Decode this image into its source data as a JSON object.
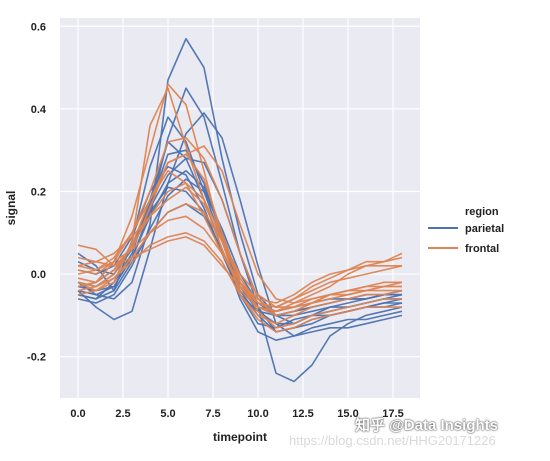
{
  "chart_data": {
    "type": "line",
    "xlabel": "timepoint",
    "ylabel": "signal",
    "xlim": [
      -1,
      19
    ],
    "ylim": [
      -0.3,
      0.62
    ],
    "xticks": [
      0.0,
      2.5,
      5.0,
      7.5,
      10.0,
      12.5,
      15.0,
      17.5
    ],
    "xtick_labels": [
      "0.0",
      "2.5",
      "5.0",
      "7.5",
      "10.0",
      "12.5",
      "15.0",
      "17.5"
    ],
    "yticks": [
      -0.2,
      0.0,
      0.2,
      0.4,
      0.6
    ],
    "ytick_labels": [
      "-0.2",
      "0.0",
      "0.2",
      "0.4",
      "0.6"
    ],
    "grid": true,
    "legend": {
      "title": "region",
      "placement": "right",
      "entries": [
        {
          "name": "parietal",
          "color": "#4c72b0"
        },
        {
          "name": "frontal",
          "color": "#dd8452"
        }
      ]
    },
    "x": [
      0,
      1,
      2,
      3,
      4,
      5,
      6,
      7,
      8,
      9,
      10,
      11,
      12,
      13,
      14,
      15,
      16,
      17,
      18
    ],
    "series": [
      {
        "group": "parietal",
        "values": [
          -0.02,
          -0.05,
          -0.06,
          -0.02,
          0.12,
          0.47,
          0.57,
          0.5,
          0.28,
          0.1,
          -0.05,
          -0.1,
          -0.12,
          -0.1,
          -0.08,
          -0.07,
          -0.06,
          -0.05,
          -0.05
        ]
      },
      {
        "group": "parietal",
        "values": [
          -0.03,
          -0.04,
          -0.03,
          0.04,
          0.15,
          0.33,
          0.45,
          0.38,
          0.22,
          0.05,
          -0.08,
          -0.24,
          -0.26,
          -0.22,
          -0.15,
          -0.12,
          -0.1,
          -0.09,
          -0.08
        ]
      },
      {
        "group": "parietal",
        "values": [
          -0.04,
          -0.08,
          -0.11,
          -0.09,
          0.06,
          0.22,
          0.34,
          0.39,
          0.33,
          0.18,
          0.02,
          -0.12,
          -0.15,
          -0.13,
          -0.12,
          -0.11,
          -0.11,
          -0.1,
          -0.09
        ]
      },
      {
        "group": "parietal",
        "values": [
          0.05,
          0.02,
          -0.04,
          0.08,
          0.26,
          0.38,
          0.32,
          0.2,
          0.08,
          -0.04,
          -0.1,
          -0.14,
          -0.13,
          -0.11,
          -0.1,
          -0.09,
          -0.08,
          -0.07,
          -0.06
        ]
      },
      {
        "group": "parietal",
        "values": [
          -0.05,
          -0.06,
          -0.02,
          0.05,
          0.18,
          0.32,
          0.28,
          0.18,
          0.06,
          -0.05,
          -0.12,
          -0.13,
          -0.11,
          -0.1,
          -0.09,
          -0.08,
          -0.07,
          -0.06,
          -0.05
        ]
      },
      {
        "group": "parietal",
        "values": [
          -0.02,
          -0.03,
          0.0,
          0.06,
          0.16,
          0.24,
          0.28,
          0.27,
          0.18,
          0.05,
          -0.06,
          -0.1,
          -0.09,
          -0.08,
          -0.07,
          -0.06,
          -0.06,
          -0.05,
          -0.05
        ]
      },
      {
        "group": "parietal",
        "values": [
          0.01,
          0.0,
          0.02,
          0.09,
          0.2,
          0.26,
          0.24,
          0.16,
          0.05,
          -0.05,
          -0.09,
          -0.1,
          -0.09,
          -0.08,
          -0.07,
          -0.06,
          -0.06,
          -0.05,
          -0.04
        ]
      },
      {
        "group": "parietal",
        "values": [
          -0.04,
          -0.05,
          -0.03,
          0.04,
          0.14,
          0.22,
          0.25,
          0.21,
          0.1,
          -0.02,
          -0.08,
          -0.14,
          -0.13,
          -0.12,
          -0.1,
          -0.09,
          -0.08,
          -0.07,
          -0.07
        ]
      },
      {
        "group": "parietal",
        "values": [
          -0.06,
          -0.07,
          -0.05,
          0.02,
          0.11,
          0.19,
          0.23,
          0.2,
          0.11,
          0.0,
          -0.07,
          -0.1,
          -0.1,
          -0.09,
          -0.08,
          -0.08,
          -0.07,
          -0.06,
          -0.06
        ]
      },
      {
        "group": "parietal",
        "values": [
          0.03,
          0.01,
          0.0,
          0.07,
          0.17,
          0.29,
          0.3,
          0.22,
          0.09,
          -0.03,
          -0.09,
          -0.12,
          -0.12,
          -0.1,
          -0.1,
          -0.09,
          -0.08,
          -0.08,
          -0.07
        ]
      },
      {
        "group": "parietal",
        "values": [
          -0.03,
          -0.02,
          0.01,
          0.07,
          0.15,
          0.21,
          0.2,
          0.15,
          0.05,
          -0.04,
          -0.08,
          -0.09,
          -0.08,
          -0.07,
          -0.06,
          -0.06,
          -0.05,
          -0.05,
          -0.04
        ]
      },
      {
        "group": "parietal",
        "values": [
          -0.05,
          -0.06,
          -0.04,
          0.03,
          0.1,
          0.15,
          0.17,
          0.14,
          0.06,
          -0.06,
          -0.14,
          -0.16,
          -0.15,
          -0.14,
          -0.13,
          -0.13,
          -0.12,
          -0.11,
          -0.1
        ]
      },
      {
        "group": "frontal",
        "values": [
          -0.03,
          -0.02,
          0.03,
          0.14,
          0.3,
          0.46,
          0.41,
          0.25,
          0.08,
          -0.05,
          -0.1,
          -0.12,
          -0.1,
          -0.08,
          -0.07,
          -0.06,
          -0.05,
          -0.05,
          -0.04
        ]
      },
      {
        "group": "frontal",
        "values": [
          -0.02,
          -0.04,
          -0.02,
          0.08,
          0.36,
          0.45,
          0.31,
          0.18,
          0.06,
          -0.04,
          -0.08,
          -0.1,
          -0.09,
          -0.07,
          -0.05,
          -0.04,
          -0.03,
          -0.03,
          -0.02
        ]
      },
      {
        "group": "frontal",
        "values": [
          0.01,
          0.0,
          0.03,
          0.1,
          0.2,
          0.32,
          0.33,
          0.28,
          0.18,
          0.05,
          -0.06,
          -0.1,
          -0.09,
          -0.07,
          -0.05,
          -0.04,
          -0.03,
          -0.02,
          -0.02
        ]
      },
      {
        "group": "frontal",
        "values": [
          0.07,
          0.06,
          0.02,
          0.06,
          0.16,
          0.27,
          0.29,
          0.23,
          0.1,
          -0.02,
          -0.07,
          -0.09,
          -0.08,
          -0.06,
          -0.05,
          -0.04,
          -0.04,
          -0.03,
          -0.03
        ]
      },
      {
        "group": "frontal",
        "values": [
          -0.02,
          -0.03,
          0.0,
          0.07,
          0.18,
          0.27,
          0.29,
          0.31,
          0.25,
          0.12,
          0.0,
          -0.06,
          -0.07,
          -0.06,
          -0.05,
          -0.05,
          -0.04,
          -0.04,
          -0.04
        ]
      },
      {
        "group": "frontal",
        "values": [
          0.0,
          0.01,
          0.04,
          0.1,
          0.18,
          0.25,
          0.22,
          0.14,
          0.05,
          -0.03,
          -0.08,
          -0.09,
          -0.07,
          -0.05,
          -0.03,
          0.0,
          0.02,
          0.03,
          0.05
        ]
      },
      {
        "group": "frontal",
        "values": [
          -0.01,
          -0.02,
          0.01,
          0.07,
          0.14,
          0.2,
          0.22,
          0.18,
          0.09,
          -0.01,
          -0.07,
          -0.08,
          -0.06,
          -0.04,
          -0.02,
          -0.01,
          0.0,
          0.01,
          0.02
        ]
      },
      {
        "group": "frontal",
        "values": [
          0.02,
          0.03,
          0.05,
          0.09,
          0.14,
          0.18,
          0.21,
          0.17,
          0.08,
          -0.02,
          -0.06,
          -0.07,
          -0.05,
          -0.02,
          0.0,
          0.01,
          0.02,
          0.02,
          0.02
        ]
      },
      {
        "group": "frontal",
        "values": [
          -0.04,
          -0.03,
          -0.01,
          0.04,
          0.1,
          0.15,
          0.17,
          0.15,
          0.08,
          0.0,
          -0.05,
          -0.08,
          -0.08,
          -0.07,
          -0.06,
          -0.05,
          -0.04,
          -0.03,
          -0.03
        ]
      },
      {
        "group": "frontal",
        "values": [
          0.02,
          0.01,
          0.03,
          0.06,
          0.1,
          0.13,
          0.14,
          0.11,
          0.05,
          -0.02,
          -0.09,
          -0.13,
          -0.12,
          -0.1,
          -0.09,
          -0.08,
          -0.07,
          -0.06,
          -0.06
        ]
      },
      {
        "group": "frontal",
        "values": [
          -0.05,
          -0.04,
          -0.01,
          0.03,
          0.07,
          0.09,
          0.1,
          0.08,
          0.03,
          -0.05,
          -0.11,
          -0.14,
          -0.13,
          -0.11,
          -0.1,
          -0.09,
          -0.08,
          -0.08,
          -0.08
        ]
      },
      {
        "group": "frontal",
        "values": [
          0.04,
          0.03,
          0.02,
          0.04,
          0.06,
          0.08,
          0.09,
          0.07,
          0.02,
          -0.03,
          -0.07,
          -0.08,
          -0.06,
          -0.03,
          -0.01,
          0.01,
          0.03,
          0.03,
          0.04
        ]
      }
    ]
  },
  "watermark": {
    "main": "知乎 @Data Insights",
    "url": "https://blog.csdn.net/HHG20171226"
  }
}
